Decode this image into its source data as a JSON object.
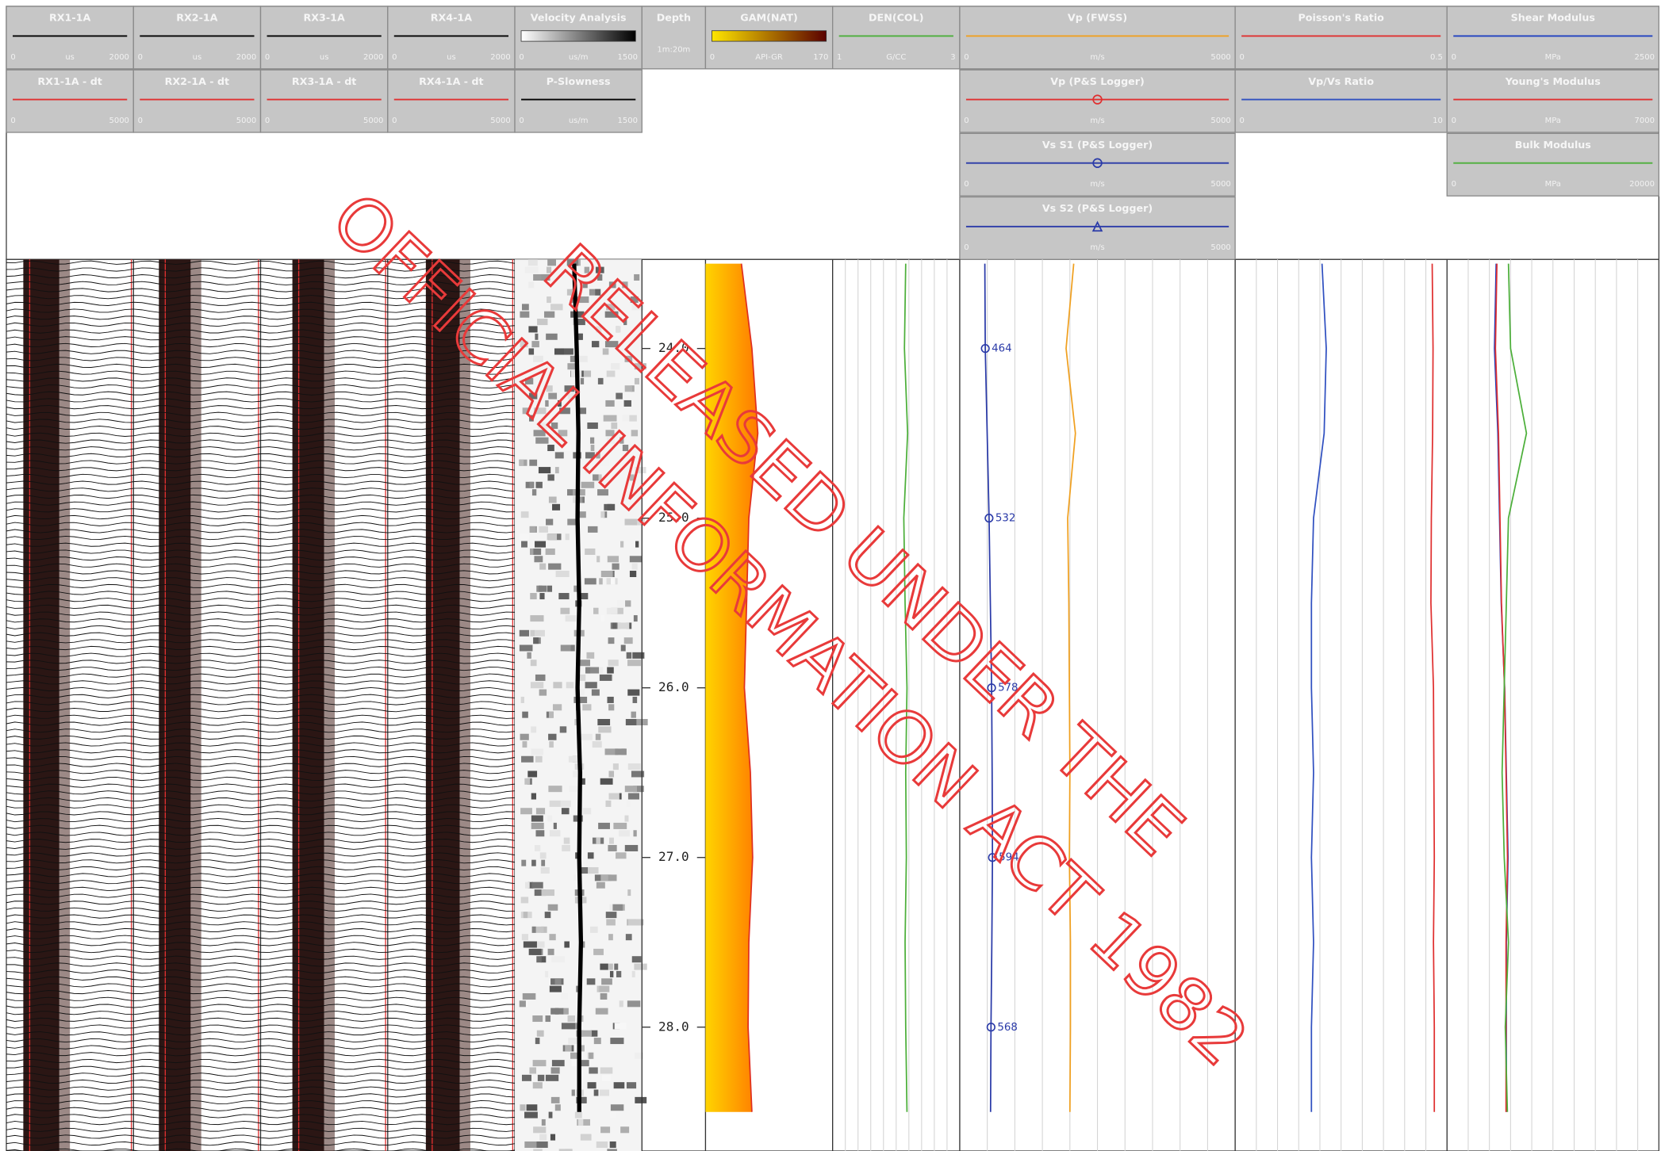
{
  "headers": [
    {
      "title": "RX1-1A",
      "left": 0,
      "unit": "us",
      "right": 2000,
      "color": "#000000"
    },
    {
      "title": "RX2-1A",
      "left": 0,
      "unit": "us",
      "right": 2000,
      "color": "#000000"
    },
    {
      "title": "RX3-1A",
      "left": 0,
      "unit": "us",
      "right": 2000,
      "color": "#000000"
    },
    {
      "title": "RX4-1A",
      "left": 0,
      "unit": "us",
      "right": 2000,
      "color": "#000000"
    },
    {
      "title": "Velocity Analysis",
      "left": 0,
      "unit": "us/m",
      "right": 1500,
      "gradient": [
        "#ffffff",
        "#000000"
      ]
    },
    {
      "title": "Depth",
      "unit": "1m:20m"
    },
    {
      "title": "GAM(NAT)",
      "left": 0,
      "unit": "API-GR",
      "right": 170,
      "gradient": [
        "#ffe600",
        "#5a0000"
      ],
      "color": "#e03020",
      "fill": [
        "#ffd400",
        "#ff7a00"
      ],
      "values": [
        48,
        62,
        70,
        58,
        55,
        52,
        60,
        63,
        58,
        57,
        62
      ]
    },
    {
      "title": "DEN(COL)",
      "left": 1,
      "unit": "G/CC",
      "right": 3,
      "color": "#4caf3a",
      "values": [
        2.15,
        2.13,
        2.18,
        2.12,
        2.14,
        2.17,
        2.15,
        2.16,
        2.14,
        2.15,
        2.17
      ]
    },
    {
      "title": "Vp (FWSS)",
      "left": 0,
      "unit": "m/s",
      "right": 5000,
      "color": "#f0a020",
      "values": [
        2070,
        1930,
        2100,
        1960,
        1980,
        1990,
        2000,
        1990,
        2010,
        2010,
        2000
      ]
    },
    {
      "title": "Poisson's Ratio",
      "left": 0,
      "right": 0.5,
      "color": "#e03030",
      "values": [
        0.465,
        0.467,
        0.466,
        0.463,
        0.462,
        0.468,
        0.469,
        0.47,
        0.468,
        0.47,
        0.47
      ]
    },
    {
      "title": "Shear Modulus",
      "left": 0,
      "unit": "MPa",
      "right": 2500,
      "color": "#2040c0",
      "values": [
        580,
        560,
        600,
        620,
        640,
        680,
        700,
        720,
        700,
        700,
        700
      ]
    },
    {
      "title": "RX1-1A - dt",
      "left": 0,
      "right": 5000,
      "color": "#e03030"
    },
    {
      "title": "RX2-1A - dt",
      "left": 0,
      "right": 5000,
      "color": "#e03030"
    },
    {
      "title": "RX3-1A - dt",
      "left": 0,
      "right": 5000,
      "color": "#e03030"
    },
    {
      "title": "RX4-1A - dt",
      "left": 0,
      "right": 5000,
      "color": "#e03030"
    },
    {
      "title": "P-Slowness",
      "left": 0,
      "unit": "us/m",
      "right": 1500,
      "color": "#000000",
      "values": [
        700,
        730,
        750,
        740,
        760,
        740,
        770,
        760,
        780,
        760,
        760
      ]
    },
    {
      "title": "Vp (P&S Logger)",
      "left": 0,
      "unit": "m/s",
      "right": 5000,
      "color": "#e03030",
      "marker": "circle"
    },
    {
      "title": "Vp/Vs Ratio",
      "left": 0,
      "right": 10,
      "color": "#3050c0",
      "values": [
        4.1,
        4.3,
        4.2,
        3.7,
        3.6,
        3.6,
        3.7,
        3.6,
        3.7,
        3.6,
        3.6
      ]
    },
    {
      "title": "Young's Modulus",
      "left": 0,
      "unit": "MPa",
      "right": 7000,
      "color": "#e03030",
      "values": [
        1650,
        1600,
        1700,
        1750,
        1800,
        1900,
        1950,
        2000,
        1950,
        1950,
        1950
      ]
    },
    {
      "title": "Vs S1 (P&S Logger)",
      "left": 0,
      "unit": "m/s",
      "right": 5000,
      "color": "#2a3aa8",
      "marker": "circle",
      "values": [
        455,
        464,
        498,
        532,
        556,
        578,
        588,
        594,
        582,
        568,
        560
      ],
      "labels": [
        464,
        532,
        578,
        594,
        568
      ]
    },
    {
      "title": "Bulk Modulus",
      "left": 0,
      "unit": "MPa",
      "right": 20000,
      "color": "#4caf3a",
      "values": [
        5800,
        6000,
        7500,
        5800,
        5600,
        5400,
        5200,
        5400,
        5800,
        5500,
        5700
      ]
    },
    {
      "title": "Vs S2 (P&S Logger)",
      "left": 0,
      "unit": "m/s",
      "right": 5000,
      "color": "#2a3aa8",
      "marker": "triangle"
    }
  ],
  "depth": {
    "range": [
      23.475,
      28.73
    ],
    "ticks": [
      {
        "value": 24,
        "label": "24.0"
      },
      {
        "value": 25,
        "label": "25.0"
      },
      {
        "value": 26,
        "label": "26.0"
      },
      {
        "value": 27,
        "label": "27.0"
      },
      {
        "value": 28,
        "label": "28.0"
      }
    ]
  },
  "samples_depth": [
    23.5,
    24.0,
    24.5,
    25.0,
    25.5,
    26.0,
    26.5,
    27.0,
    27.5,
    28.0,
    28.5
  ],
  "watermark": [
    "RELEASED UNDER THE",
    "OFFICIAL INFORMATION ACT 1982"
  ]
}
